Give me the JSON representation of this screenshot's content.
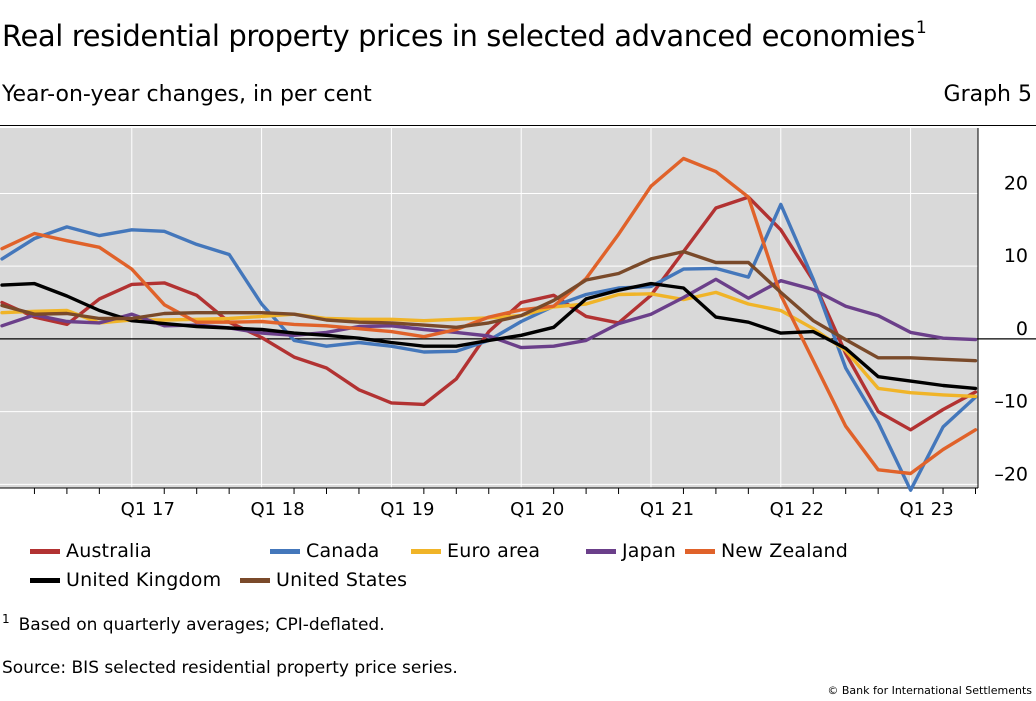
{
  "header": {
    "title": "Real residential property prices in selected advanced economies",
    "title_footnote_mark": "1",
    "subtitle": "Year-on-year changes, in per cent",
    "graph_number": "Graph 5"
  },
  "footer": {
    "footnote_mark": "1",
    "footnote_text": "Based on quarterly averages; CPI-deflated.",
    "source": "Source: BIS selected residential property price series.",
    "copyright": "© Bank for International Settlements"
  },
  "chart_data": {
    "type": "line",
    "x_tick_labels": [
      "Q1 17",
      "Q1 18",
      "Q1 19",
      "Q1 20",
      "Q1 21",
      "Q1 22",
      "Q1 23"
    ],
    "y_tick_labels": [
      "20",
      "10",
      "0",
      "–10",
      "–20"
    ],
    "y_ticks": [
      20,
      10,
      0,
      -10,
      -20
    ],
    "ylim": [
      -20.5,
      29
    ],
    "y_axis_side": "right",
    "grid": true,
    "background_color": "#d9d9d9",
    "x_start_quarter": "Q1 16",
    "x": [
      "Q1 16",
      "Q2 16",
      "Q3 16",
      "Q4 16",
      "Q1 17",
      "Q2 17",
      "Q3 17",
      "Q4 17",
      "Q1 18",
      "Q2 18",
      "Q3 18",
      "Q4 18",
      "Q1 19",
      "Q2 19",
      "Q3 19",
      "Q4 19",
      "Q1 20",
      "Q2 20",
      "Q3 20",
      "Q4 20",
      "Q1 21",
      "Q2 21",
      "Q3 21",
      "Q4 21",
      "Q1 22",
      "Q2 22",
      "Q3 22",
      "Q4 22",
      "Q1 23",
      "Q2 23",
      "Q3 23"
    ],
    "legend_position": "bottom",
    "series": [
      {
        "name": "Australia",
        "color": "#b23232",
        "values": [
          5,
          3,
          2,
          5.5,
          7.5,
          7.7,
          6,
          2.3,
          0.2,
          -2.5,
          -4,
          -7,
          -8.8,
          -9,
          -5.5,
          1,
          5,
          6,
          3.1,
          2.2,
          6,
          12,
          18,
          19.5,
          15,
          8,
          -2,
          -10,
          -12.5,
          -9.7,
          -7.3
        ]
      },
      {
        "name": "Canada",
        "color": "#4477bb",
        "values": [
          11,
          13.8,
          15.4,
          14.2,
          15,
          14.8,
          13,
          11.6,
          4.8,
          -0.2,
          -1,
          -0.5,
          -1,
          -1.8,
          -1.7,
          -0.2,
          2.4,
          4.5,
          6.1,
          7,
          7.2,
          9.6,
          9.7,
          8.5,
          18.5,
          8.2,
          -4,
          -11.5,
          -20.8,
          -12.1,
          -8
        ]
      },
      {
        "name": "Euro area",
        "color": "#f0b428",
        "values": [
          3.6,
          3.8,
          3.9,
          2.2,
          2.6,
          2.6,
          2.7,
          2.8,
          3.1,
          3.4,
          2.8,
          2.7,
          2.7,
          2.5,
          2.7,
          2.9,
          3.2,
          4.4,
          4.8,
          6.1,
          6.2,
          5.4,
          6.4,
          4.8,
          3.9,
          1.4,
          -1.6,
          -6.8,
          -7.4,
          -7.7,
          -7.9
        ]
      },
      {
        "name": "Japan",
        "color": "#6b3f8a",
        "values": [
          1.8,
          3.3,
          2.4,
          2.2,
          3.4,
          1.8,
          1.9,
          1.5,
          0.8,
          0.5,
          0.9,
          1.7,
          1.8,
          1.3,
          0.9,
          0.4,
          -1.2,
          -1,
          -0.2,
          2.1,
          3.4,
          5.7,
          8.2,
          5.6,
          8,
          6.8,
          4.5,
          3.2,
          0.9,
          0.1,
          -0.1
        ]
      },
      {
        "name": "New Zealand",
        "color": "#e0622a",
        "values": [
          12.4,
          14.5,
          13.5,
          12.6,
          9.6,
          4.7,
          2.3,
          2.3,
          2.4,
          2,
          1.8,
          1.4,
          1,
          0.3,
          1.3,
          3,
          4,
          4.5,
          8.3,
          14.4,
          21,
          24.8,
          23,
          19.5,
          6,
          -3,
          -12,
          -18,
          -18.5,
          -15.2,
          -12.5
        ]
      },
      {
        "name": "United Kingdom",
        "color": "#000000",
        "values": [
          7.4,
          7.6,
          5.9,
          3.9,
          2.5,
          2.1,
          1.7,
          1.5,
          1.3,
          0.8,
          0.5,
          0.1,
          -0.5,
          -1,
          -1,
          -0.2,
          0.5,
          1.6,
          5.5,
          6.7,
          7.6,
          7,
          3,
          2.3,
          0.8,
          1,
          -1.3,
          -5.2,
          -5.8,
          -6.4,
          -6.8
        ]
      },
      {
        "name": "United States",
        "color": "#7a4a2a",
        "values": [
          4.6,
          3.4,
          3.5,
          2.8,
          2.8,
          3.5,
          3.6,
          3.6,
          3.6,
          3.4,
          2.6,
          2.3,
          2.2,
          1.9,
          1.6,
          2.2,
          3.2,
          5.3,
          8.1,
          9,
          11,
          12,
          10.5,
          10.5,
          6.4,
          2.5,
          -0.1,
          -2.6,
          -2.6,
          -2.8,
          -3
        ]
      }
    ]
  }
}
